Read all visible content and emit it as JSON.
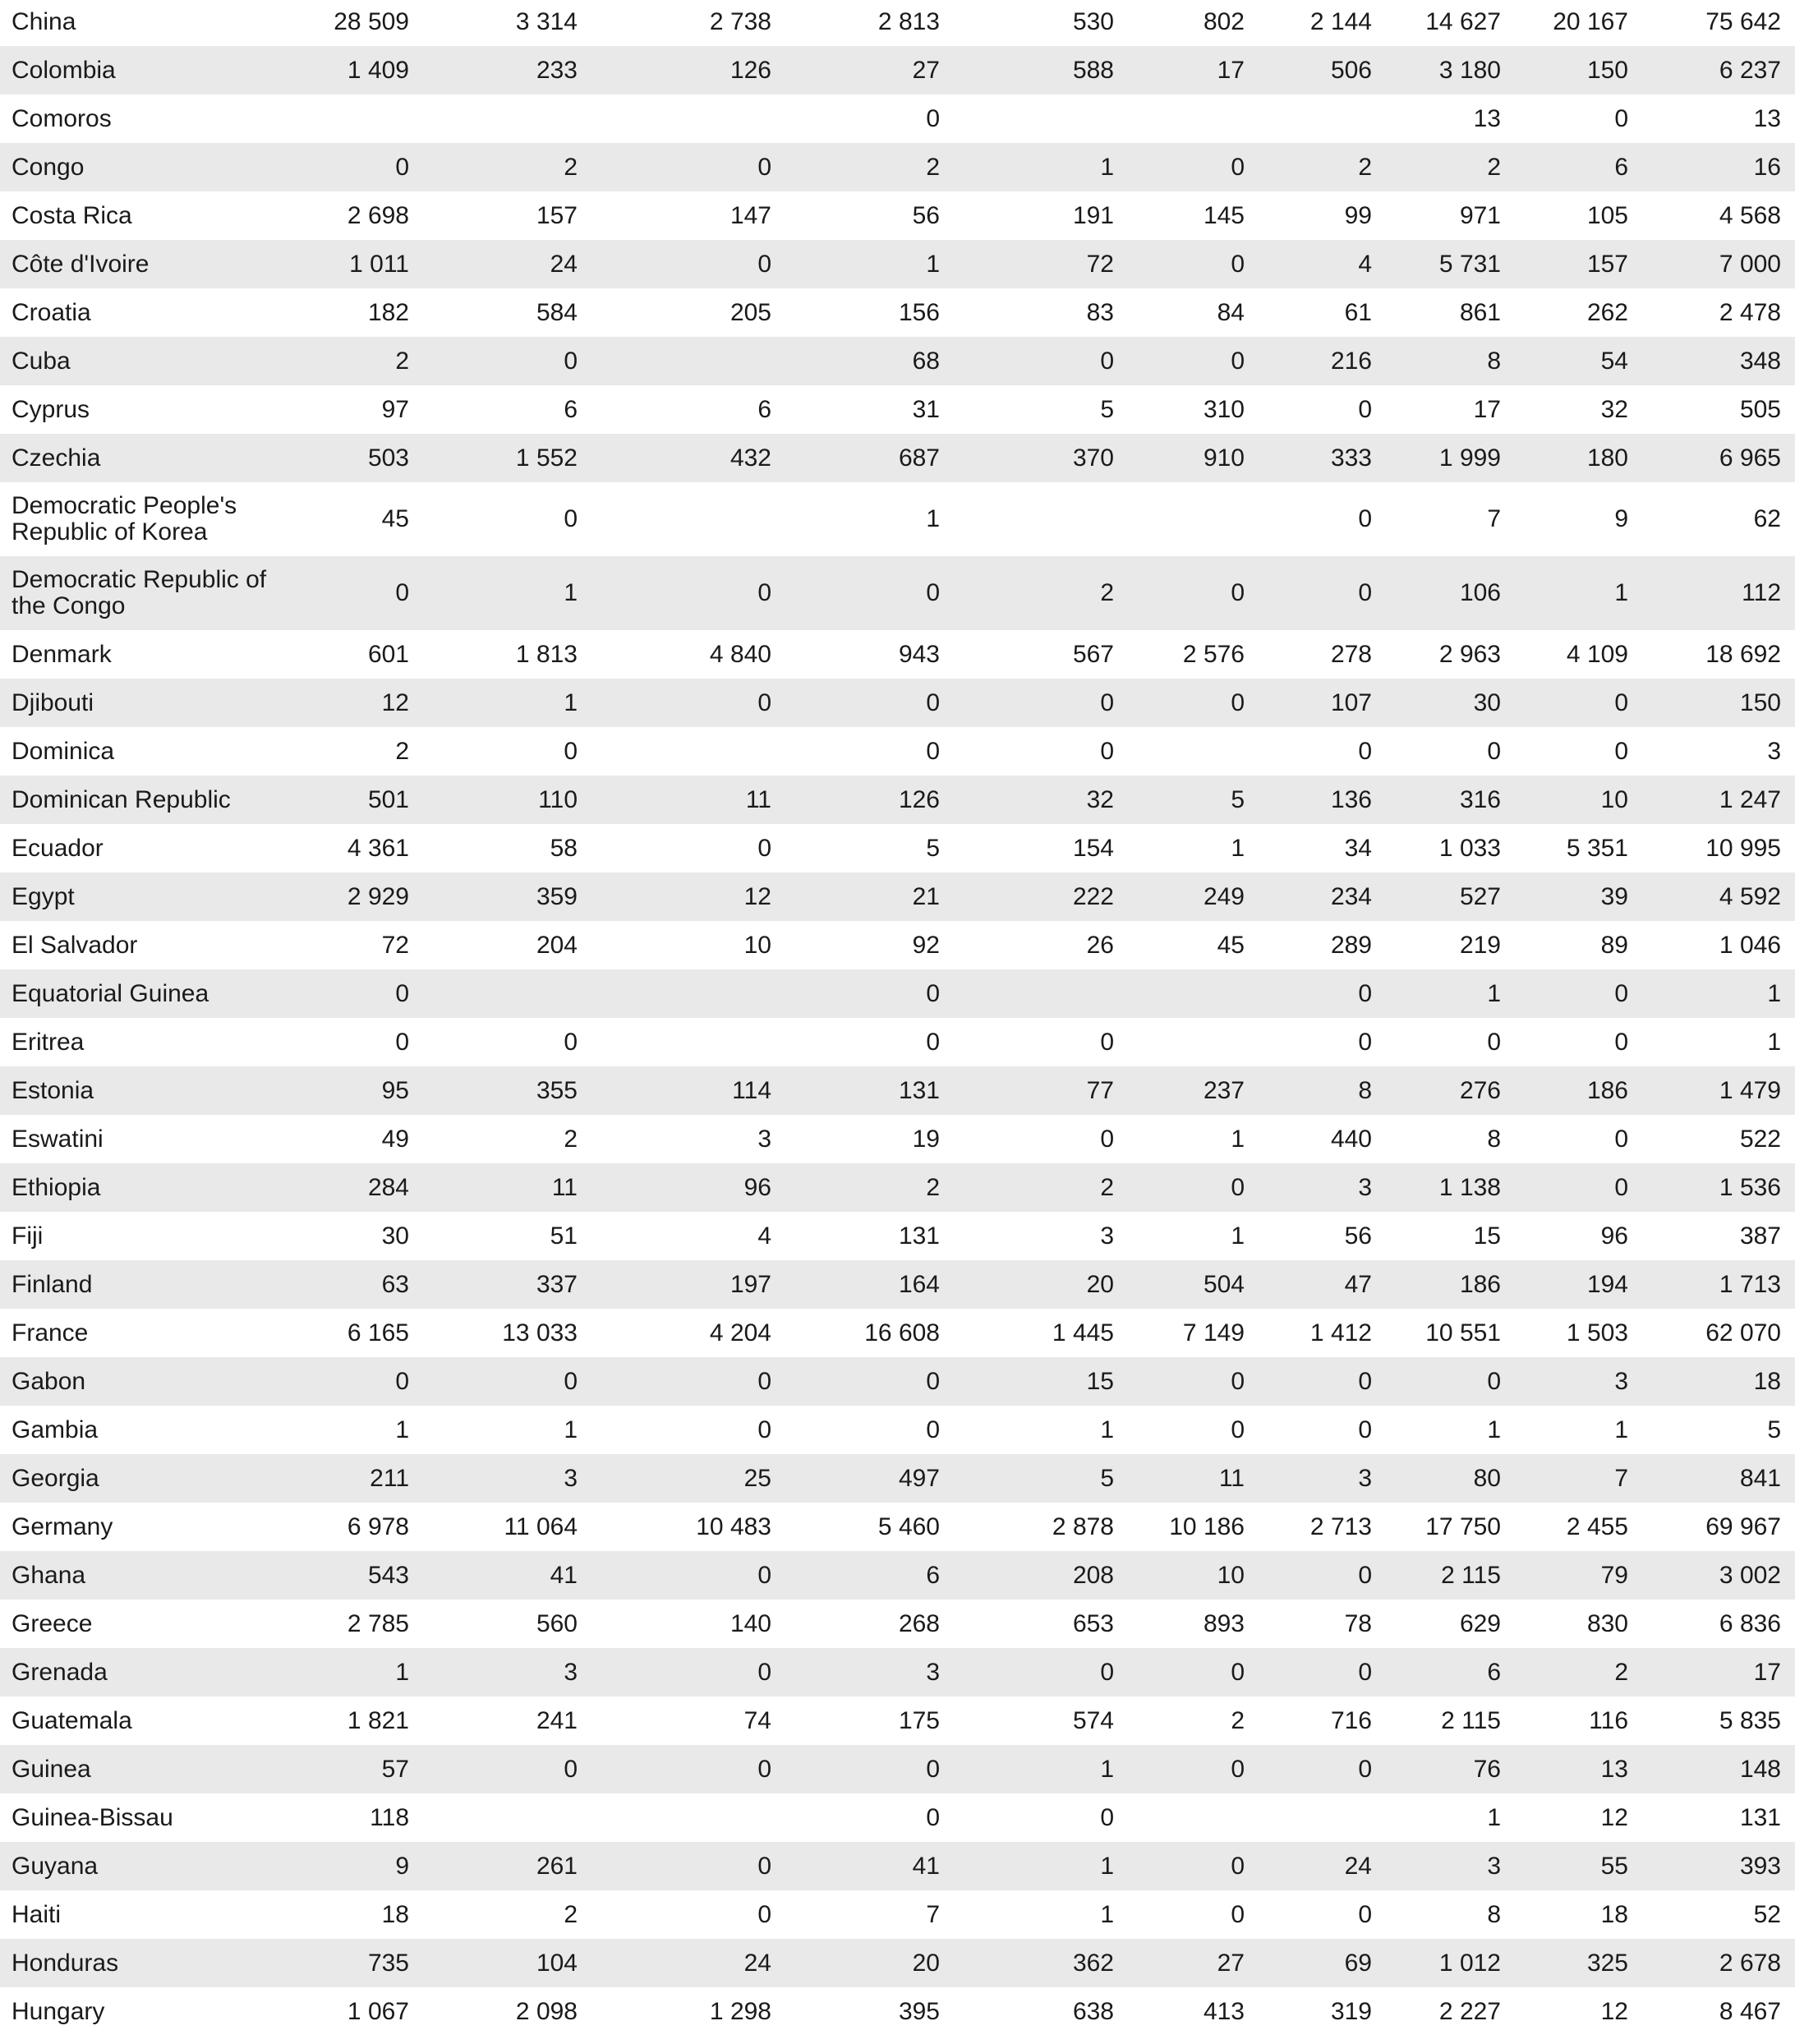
{
  "table": {
    "rows": [
      [
        "China",
        "28 509",
        "3 314",
        "2 738",
        "2 813",
        "530",
        "802",
        "2 144",
        "14 627",
        "20 167",
        "75 642"
      ],
      [
        "Colombia",
        "1 409",
        "233",
        "126",
        "27",
        "588",
        "17",
        "506",
        "3 180",
        "150",
        "6 237"
      ],
      [
        "Comoros",
        null,
        null,
        null,
        "0",
        null,
        null,
        null,
        "13",
        "0",
        "13"
      ],
      [
        "Congo",
        "0",
        "2",
        "0",
        "2",
        "1",
        "0",
        "2",
        "2",
        "6",
        "16"
      ],
      [
        "Costa Rica",
        "2 698",
        "157",
        "147",
        "56",
        "191",
        "145",
        "99",
        "971",
        "105",
        "4 568"
      ],
      [
        "Côte d'Ivoire",
        "1 011",
        "24",
        "0",
        "1",
        "72",
        "0",
        "4",
        "5 731",
        "157",
        "7 000"
      ],
      [
        "Croatia",
        "182",
        "584",
        "205",
        "156",
        "83",
        "84",
        "61",
        "861",
        "262",
        "2 478"
      ],
      [
        "Cuba",
        "2",
        "0",
        null,
        "68",
        "0",
        "0",
        "216",
        "8",
        "54",
        "348"
      ],
      [
        "Cyprus",
        "97",
        "6",
        "6",
        "31",
        "5",
        "310",
        "0",
        "17",
        "32",
        "505"
      ],
      [
        "Czechia",
        "503",
        "1 552",
        "432",
        "687",
        "370",
        "910",
        "333",
        "1 999",
        "180",
        "6 965"
      ],
      [
        "Democratic People's Republic of Korea",
        "45",
        "0",
        null,
        "1",
        null,
        null,
        "0",
        "7",
        "9",
        "62"
      ],
      [
        "Democratic Republic of the Congo",
        "0",
        "1",
        "0",
        "0",
        "2",
        "0",
        "0",
        "106",
        "1",
        "112"
      ],
      [
        "Denmark",
        "601",
        "1 813",
        "4 840",
        "943",
        "567",
        "2 576",
        "278",
        "2 963",
        "4 109",
        "18 692"
      ],
      [
        "Djibouti",
        "12",
        "1",
        "0",
        "0",
        "0",
        "0",
        "107",
        "30",
        "0",
        "150"
      ],
      [
        "Dominica",
        "2",
        "0",
        null,
        "0",
        "0",
        null,
        "0",
        "0",
        "0",
        "3"
      ],
      [
        "Dominican Republic",
        "501",
        "110",
        "11",
        "126",
        "32",
        "5",
        "136",
        "316",
        "10",
        "1 247"
      ],
      [
        "Ecuador",
        "4 361",
        "58",
        "0",
        "5",
        "154",
        "1",
        "34",
        "1 033",
        "5 351",
        "10 995"
      ],
      [
        "Egypt",
        "2 929",
        "359",
        "12",
        "21",
        "222",
        "249",
        "234",
        "527",
        "39",
        "4 592"
      ],
      [
        "El Salvador",
        "72",
        "204",
        "10",
        "92",
        "26",
        "45",
        "289",
        "219",
        "89",
        "1 046"
      ],
      [
        "Equatorial Guinea",
        "0",
        null,
        null,
        "0",
        null,
        null,
        "0",
        "1",
        "0",
        "1"
      ],
      [
        "Eritrea",
        "0",
        "0",
        null,
        "0",
        "0",
        null,
        "0",
        "0",
        "0",
        "1"
      ],
      [
        "Estonia",
        "95",
        "355",
        "114",
        "131",
        "77",
        "237",
        "8",
        "276",
        "186",
        "1 479"
      ],
      [
        "Eswatini",
        "49",
        "2",
        "3",
        "19",
        "0",
        "1",
        "440",
        "8",
        "0",
        "522"
      ],
      [
        "Ethiopia",
        "284",
        "11",
        "96",
        "2",
        "2",
        "0",
        "3",
        "1 138",
        "0",
        "1 536"
      ],
      [
        "Fiji",
        "30",
        "51",
        "4",
        "131",
        "3",
        "1",
        "56",
        "15",
        "96",
        "387"
      ],
      [
        "Finland",
        "63",
        "337",
        "197",
        "164",
        "20",
        "504",
        "47",
        "186",
        "194",
        "1 713"
      ],
      [
        "France",
        "6 165",
        "13 033",
        "4 204",
        "16 608",
        "1 445",
        "7 149",
        "1 412",
        "10 551",
        "1 503",
        "62 070"
      ],
      [
        "Gabon",
        "0",
        "0",
        "0",
        "0",
        "15",
        "0",
        "0",
        "0",
        "3",
        "18"
      ],
      [
        "Gambia",
        "1",
        "1",
        "0",
        "0",
        "1",
        "0",
        "0",
        "1",
        "1",
        "5"
      ],
      [
        "Georgia",
        "211",
        "3",
        "25",
        "497",
        "5",
        "11",
        "3",
        "80",
        "7",
        "841"
      ],
      [
        "Germany",
        "6 978",
        "11 064",
        "10 483",
        "5 460",
        "2 878",
        "10 186",
        "2 713",
        "17 750",
        "2 455",
        "69 967"
      ],
      [
        "Ghana",
        "543",
        "41",
        "0",
        "6",
        "208",
        "10",
        "0",
        "2 115",
        "79",
        "3 002"
      ],
      [
        "Greece",
        "2 785",
        "560",
        "140",
        "268",
        "653",
        "893",
        "78",
        "629",
        "830",
        "6 836"
      ],
      [
        "Grenada",
        "1",
        "3",
        "0",
        "3",
        "0",
        "0",
        "0",
        "6",
        "2",
        "17"
      ],
      [
        "Guatemala",
        "1 821",
        "241",
        "74",
        "175",
        "574",
        "2",
        "716",
        "2 115",
        "116",
        "5 835"
      ],
      [
        "Guinea",
        "57",
        "0",
        "0",
        "0",
        "1",
        "0",
        "0",
        "76",
        "13",
        "148"
      ],
      [
        "Guinea-Bissau",
        "118",
        null,
        null,
        "0",
        "0",
        null,
        null,
        "1",
        "12",
        "131"
      ],
      [
        "Guyana",
        "9",
        "261",
        "0",
        "41",
        "1",
        "0",
        "24",
        "3",
        "55",
        "393"
      ],
      [
        "Haiti",
        "18",
        "2",
        "0",
        "7",
        "1",
        "0",
        "0",
        "8",
        "18",
        "52"
      ],
      [
        "Honduras",
        "735",
        "104",
        "24",
        "20",
        "362",
        "27",
        "69",
        "1 012",
        "325",
        "2 678"
      ],
      [
        "Hungary",
        "1 067",
        "2 098",
        "1 298",
        "395",
        "638",
        "413",
        "319",
        "2 227",
        "12",
        "8 467"
      ]
    ]
  }
}
